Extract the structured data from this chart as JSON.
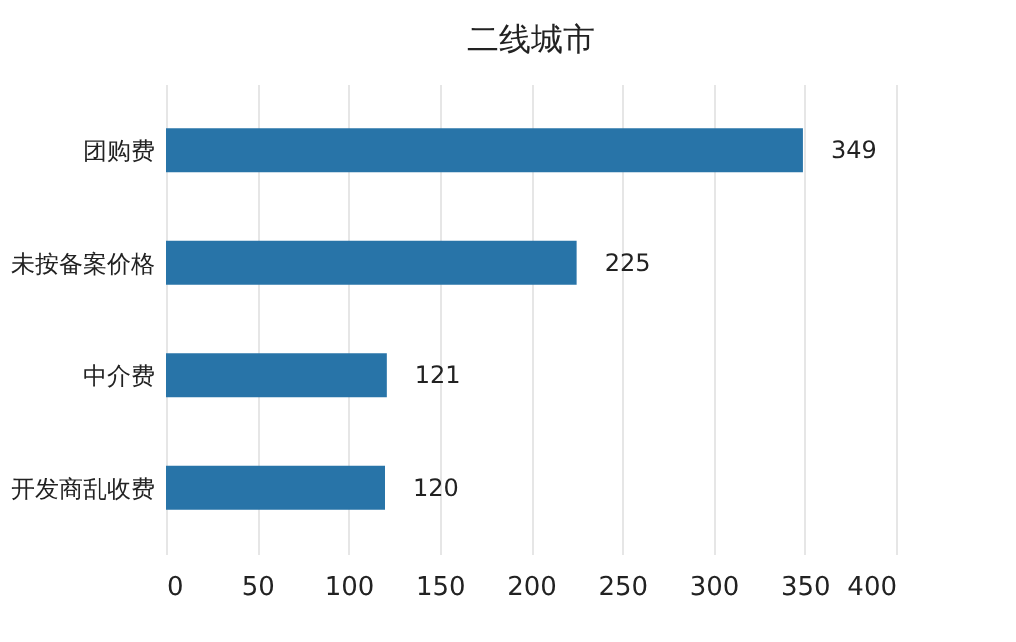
{
  "chart_data": {
    "type": "bar",
    "orientation": "horizontal",
    "title": "二线城市",
    "categories": [
      "团购费",
      "未按备案价格",
      "中介费",
      "开发商乱收费"
    ],
    "values": [
      349,
      225,
      121,
      120
    ],
    "color": "#2874a8",
    "xlim": [
      0,
      400
    ],
    "xticks": [
      0,
      50,
      100,
      150,
      200,
      250,
      300,
      350,
      400
    ],
    "grid": "x",
    "data_labels": true
  }
}
